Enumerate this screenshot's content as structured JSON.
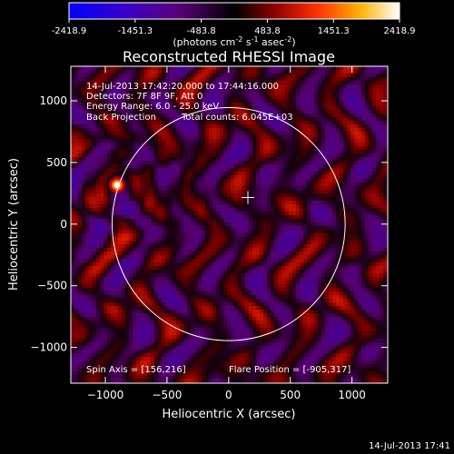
{
  "colorbar": {
    "ticks": [
      "-2418.9",
      "-1451.3",
      "-483.8",
      "483.8",
      "1451.3",
      "2418.9"
    ],
    "unit_parts": [
      "(photons cm",
      "-2",
      " s",
      "-1",
      " asec",
      "-2",
      ")"
    ]
  },
  "chart_data": {
    "type": "heatmap",
    "title": "Reconstructed RHESSI Image",
    "xlabel": "Heliocentric X (arcsec)",
    "ylabel": "Heliocentric Y (arcsec)",
    "xlim": [
      -1280,
      1290
    ],
    "ylim": [
      -1290,
      1280
    ],
    "xticks": [
      -1000,
      -500,
      0,
      500,
      1000
    ],
    "xtick_labels": [
      "−1000",
      "−500",
      "0",
      "500",
      "1000"
    ],
    "yticks": [
      -1000,
      -500,
      0,
      500,
      1000
    ],
    "ytick_labels": [
      "−1000",
      "−500",
      "0",
      "500",
      "1000"
    ],
    "value_range": [
      -2418.9,
      2418.9
    ],
    "colormap": [
      "#0000ff",
      "#5a007a",
      "#000000",
      "#8a0000",
      "#ff3000",
      "#ffb000",
      "#ffffff"
    ],
    "solar_disk": {
      "center": [
        0,
        0
      ],
      "radius": 945
    },
    "spin_axis": [
      156,
      216
    ],
    "flare_position": [
      -905,
      317
    ],
    "annotations": [
      "14-Jul-2013 17:42:20.000 to 17:44:16.000",
      "Detectors: 7F 8F 9F, Att 0",
      "Energy Range: 6.0 - 25.0 keV",
      "Back Projection",
      "Total counts: 6.045E+03"
    ],
    "footer_left": "Spin Axis = [156,216]",
    "footer_right": "Flare Position = [-905,317]"
  },
  "footer_timestamp": "14-Jul-2013 17:41"
}
